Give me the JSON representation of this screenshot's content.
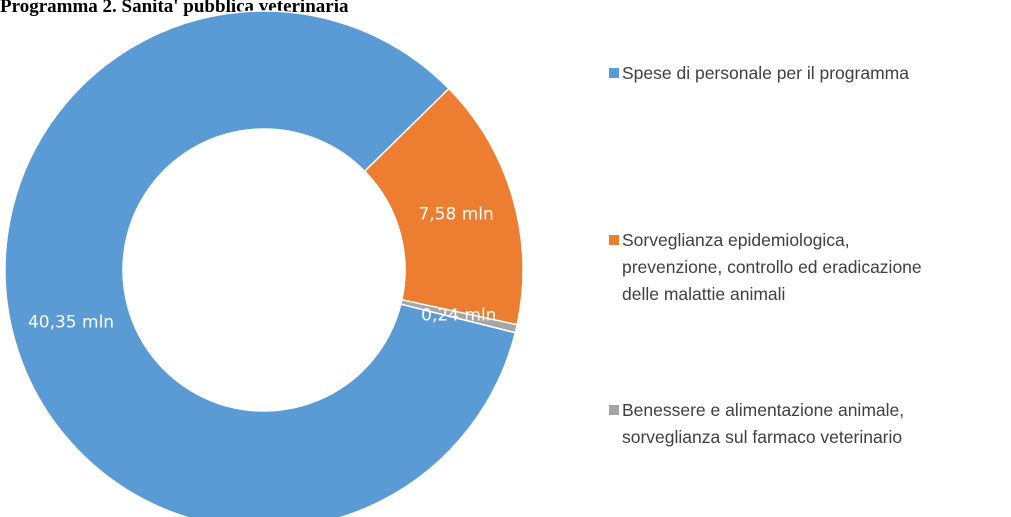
{
  "chart_data": {
    "type": "donut",
    "title": "Programma 2. Sanita' pubblica veterinaria",
    "categories": [
      "Spese di personale per il programma",
      "Sorveglianza epidemiologica, prevenzione, controllo ed eradicazione delle malattie animali",
      "Benessere e alimentazione animale, sorveglianza sul farmaco veterinario"
    ],
    "values": [
      40.35,
      7.58,
      0.24
    ],
    "value_labels": [
      "40,35 mln",
      "7,58 mln",
      "0,24 mln"
    ],
    "colors": [
      "#5b9bd5",
      "#ed7d31",
      "#a5a5a5"
    ],
    "legend": "right"
  }
}
